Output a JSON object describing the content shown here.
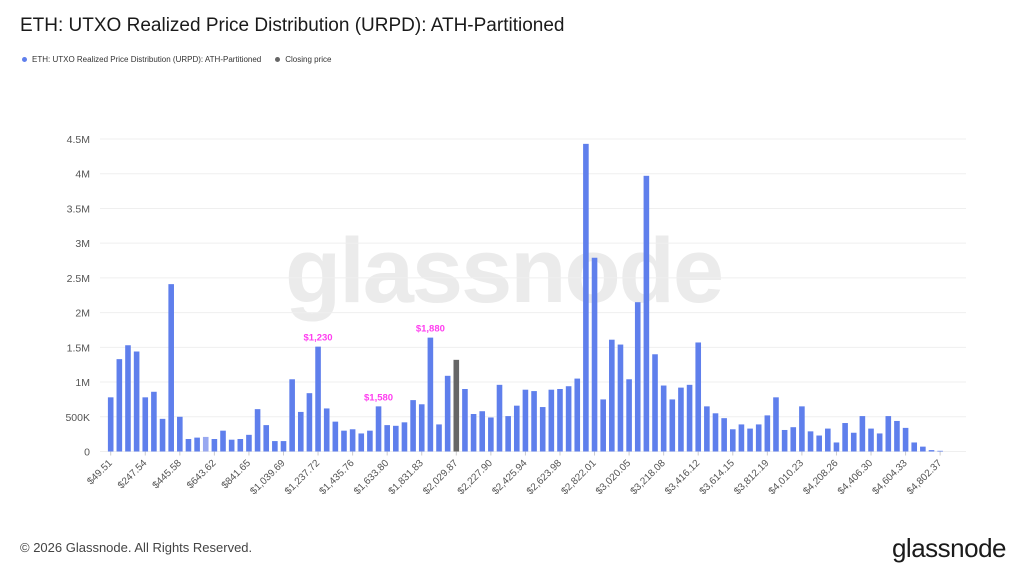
{
  "title": "ETH: UTXO Realized Price Distribution (URPD): ATH-Partitioned",
  "legend": [
    {
      "label": "ETH: UTXO Realized Price Distribution (URPD): ATH-Partitioned",
      "color": "#5f7fec"
    },
    {
      "label": "Closing price",
      "color": "#666666"
    }
  ],
  "watermark": "glassnode",
  "footer": "© 2026 Glassnode. All Rights Reserved.",
  "logo": "glassnode",
  "chart_data": {
    "type": "bar",
    "title": "ETH: UTXO Realized Price Distribution (URPD): ATH-Partitioned",
    "xlabel": "",
    "ylabel": "",
    "ylim": [
      0,
      4500000
    ],
    "y_ticks": [
      "0",
      "500K",
      "1M",
      "1.5M",
      "2M",
      "2.5M",
      "3M",
      "3.5M",
      "4M",
      "4.5M"
    ],
    "grid": "horizontal",
    "legend_position": "top-left",
    "x_tick_labels": [
      "$49.51",
      "$247.54",
      "$445.58",
      "$643.62",
      "$841.65",
      "$1,039.69",
      "$1,237.72",
      "$1,435.76",
      "$1,633.80",
      "$1,831.83",
      "$2,029.87",
      "$2,227.90",
      "$2,425.94",
      "$2,623.98",
      "$2,822.01",
      "$3,020.05",
      "$3,218.08",
      "$3,416.12",
      "$3,614.15",
      "$3,812.19",
      "$4,010.23",
      "$4,208.26",
      "$4,406.30",
      "$4,604.33",
      "$4,802.37"
    ],
    "x_tick_every": 4,
    "bar_color": "#5f7fec",
    "highlight_color": "#98a8f0",
    "closing_color": "#666666",
    "closing_price_index": 40,
    "highlight_index": 11,
    "values": [
      780000,
      1330000,
      1530000,
      1440000,
      780000,
      860000,
      470000,
      2410000,
      500000,
      180000,
      200000,
      210000,
      180000,
      300000,
      170000,
      180000,
      240000,
      610000,
      380000,
      150000,
      150000,
      1040000,
      570000,
      840000,
      1510000,
      620000,
      430000,
      300000,
      320000,
      260000,
      300000,
      650000,
      380000,
      370000,
      420000,
      740000,
      680000,
      1640000,
      390000,
      1090000,
      1320000,
      900000,
      540000,
      580000,
      490000,
      960000,
      510000,
      660000,
      890000,
      870000,
      640000,
      890000,
      900000,
      940000,
      1050000,
      4430000,
      2790000,
      750000,
      1610000,
      1540000,
      1040000,
      2150000,
      3970000,
      1400000,
      950000,
      750000,
      920000,
      960000,
      1570000,
      650000,
      550000,
      480000,
      320000,
      390000,
      330000,
      390000,
      520000,
      780000,
      310000,
      350000,
      650000,
      290000,
      230000,
      330000,
      130000,
      410000,
      270000,
      510000,
      330000,
      260000,
      510000,
      440000,
      340000,
      130000,
      70000,
      20000,
      10000
    ],
    "annotations": [
      {
        "text": "$1,230",
        "index": 24,
        "color": "#ff3df0"
      },
      {
        "text": "$1,580",
        "index": 31,
        "color": "#ff3df0"
      },
      {
        "text": "$1,880",
        "index": 37,
        "color": "#ff3df0"
      }
    ]
  }
}
